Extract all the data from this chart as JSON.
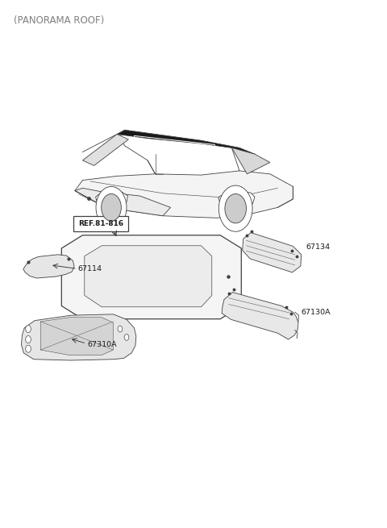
{
  "title": "(PANORAMA ROOF)",
  "title_color": "#808080",
  "title_fontsize": 8.5,
  "background_color": "#ffffff",
  "line_color": "#404040",
  "fig_width": 4.8,
  "fig_height": 6.55,
  "dpi": 100,
  "ref_label": "REF.81-816",
  "part_ids": [
    "67134",
    "67114",
    "67130A",
    "67310A"
  ]
}
